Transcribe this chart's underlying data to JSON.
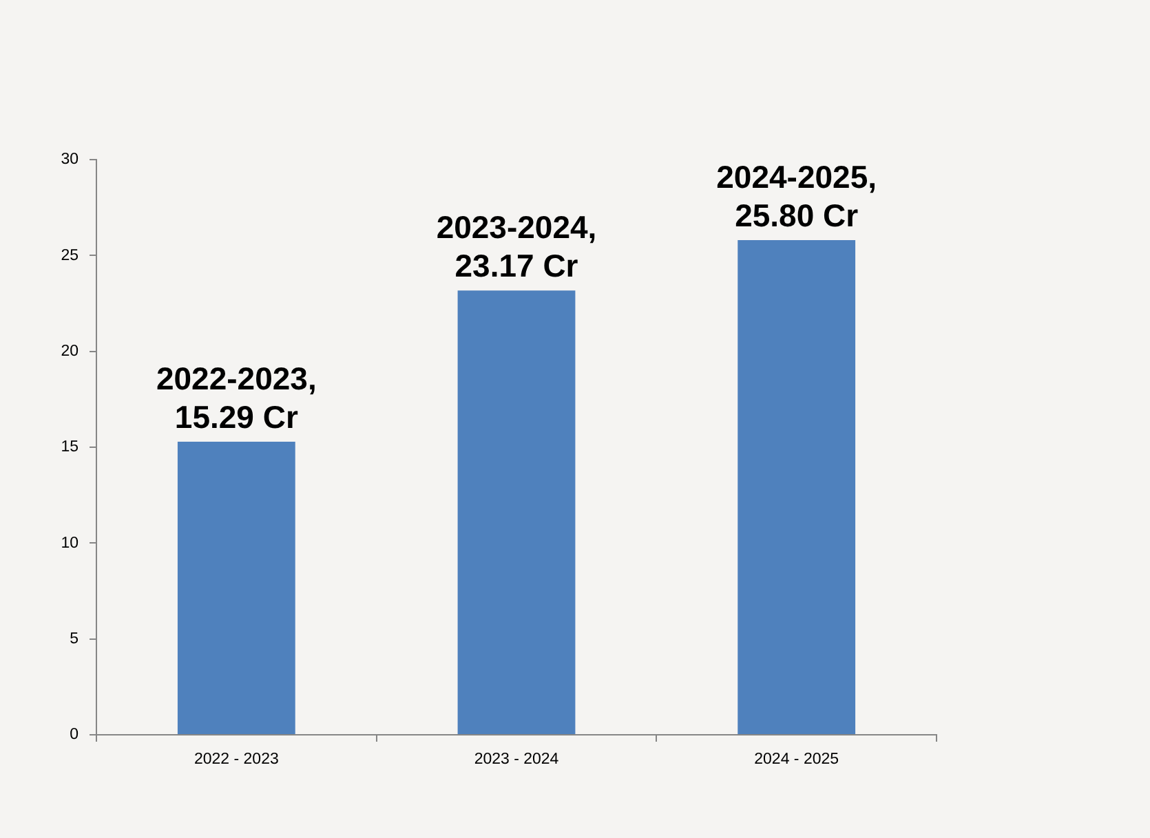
{
  "chart_data": {
    "type": "bar",
    "categories": [
      "2022 - 2023",
      "2023 - 2024",
      "2024 - 2025"
    ],
    "values": [
      15.29,
      23.17,
      25.8
    ],
    "color": "#4f81bd",
    "value_labels": [
      "2022-2023,\n15.29 Cr",
      "2023-2024,\n23.17 Cr",
      "2024-2025,\n25.80 Cr"
    ],
    "ylim": [
      0,
      30
    ],
    "yticks": [
      0,
      5,
      10,
      15,
      20,
      25,
      30
    ],
    "grid": false
  }
}
